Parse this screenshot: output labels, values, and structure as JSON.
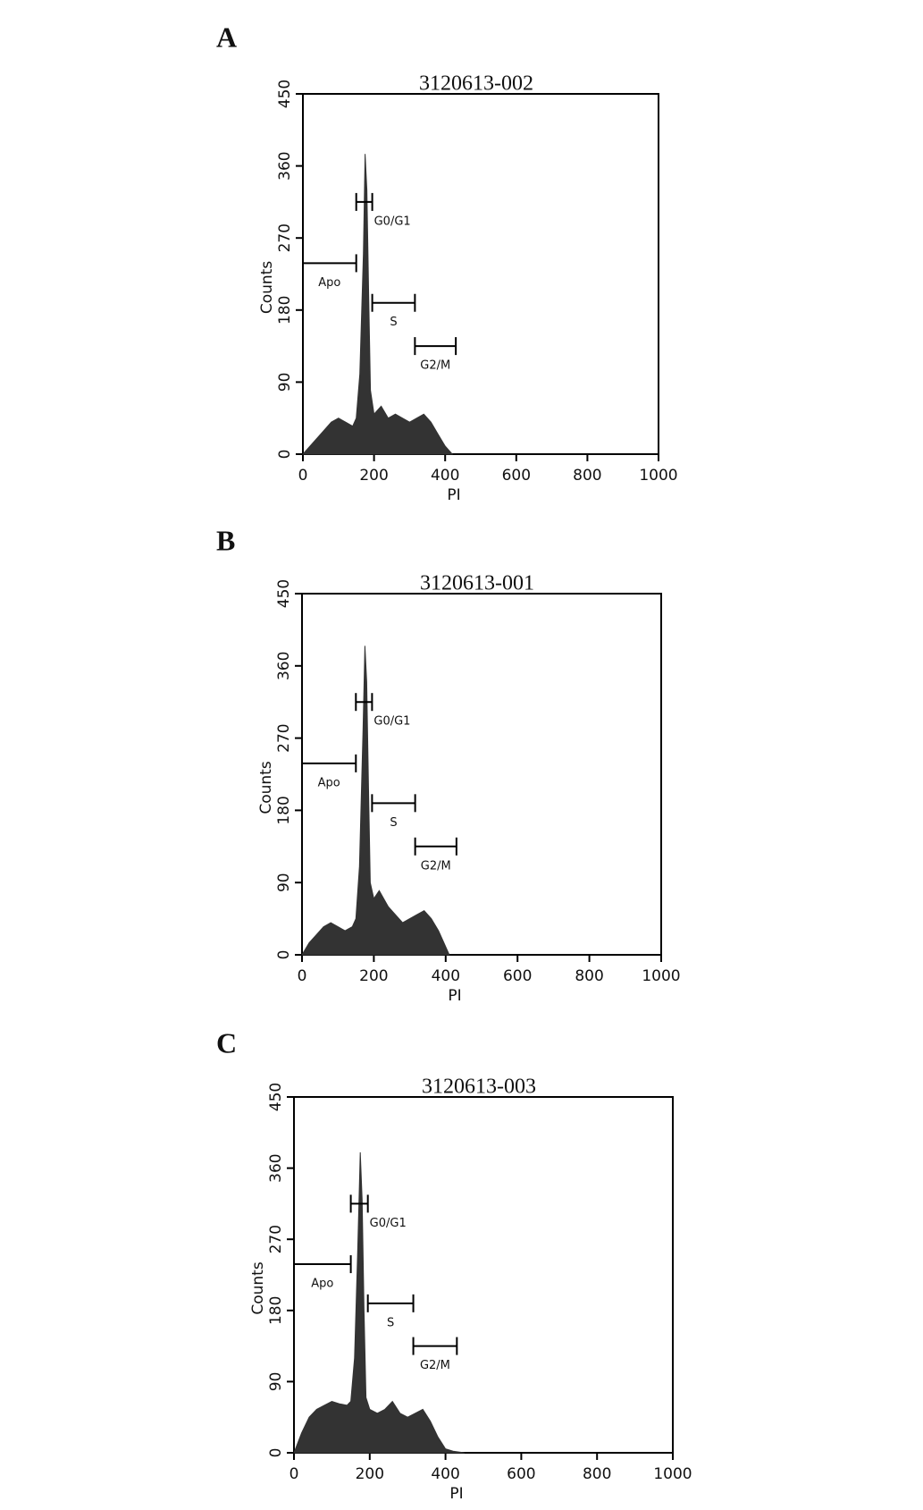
{
  "chart_data": [
    {
      "type": "area",
      "panel": "A",
      "title": "3120613-002",
      "xlabel": "PI",
      "ylabel": "Counts",
      "color": "#333333",
      "x": [
        0,
        20,
        40,
        60,
        80,
        100,
        120,
        140,
        150,
        160,
        170,
        175,
        180,
        185,
        190,
        200,
        220,
        240,
        260,
        280,
        300,
        320,
        340,
        360,
        380,
        400,
        420
      ],
      "values": [
        0,
        10,
        20,
        30,
        40,
        45,
        40,
        35,
        45,
        100,
        250,
        375,
        330,
        200,
        80,
        50,
        60,
        45,
        50,
        45,
        40,
        45,
        50,
        40,
        25,
        10,
        0
      ],
      "xlim": [
        0,
        1000
      ],
      "ylim": [
        0,
        450
      ],
      "xticks": [
        0,
        200,
        400,
        600,
        800,
        1000
      ],
      "yticks": [
        0,
        90,
        180,
        270,
        360,
        450
      ],
      "gates": [
        {
          "label": "Apo",
          "range": [
            0,
            150
          ]
        },
        {
          "label": "G0/G1",
          "range": [
            150,
            195
          ]
        },
        {
          "label": "S",
          "range": [
            195,
            315
          ]
        },
        {
          "label": "G2/M",
          "range": [
            315,
            430
          ]
        }
      ]
    },
    {
      "type": "area",
      "panel": "B",
      "title": "3120613-001",
      "xlabel": "PI",
      "ylabel": "Counts",
      "color": "#333333",
      "x": [
        0,
        20,
        40,
        60,
        80,
        100,
        120,
        140,
        150,
        160,
        170,
        175,
        180,
        185,
        190,
        200,
        215,
        240,
        260,
        280,
        300,
        320,
        340,
        360,
        380,
        400,
        410
      ],
      "values": [
        0,
        15,
        25,
        35,
        40,
        35,
        30,
        35,
        45,
        110,
        280,
        385,
        340,
        210,
        90,
        70,
        80,
        60,
        50,
        40,
        45,
        50,
        55,
        45,
        30,
        10,
        0
      ],
      "xlim": [
        0,
        1000
      ],
      "ylim": [
        0,
        450
      ],
      "xticks": [
        0,
        200,
        400,
        600,
        800,
        1000
      ],
      "yticks": [
        0,
        90,
        180,
        270,
        360,
        450
      ],
      "gates": [
        {
          "label": "Apo",
          "range": [
            0,
            150
          ]
        },
        {
          "label": "G0/G1",
          "range": [
            150,
            195
          ]
        },
        {
          "label": "S",
          "range": [
            195,
            315
          ]
        },
        {
          "label": "G2/M",
          "range": [
            315,
            430
          ]
        }
      ]
    },
    {
      "type": "area",
      "panel": "C",
      "title": "3120613-003",
      "xlabel": "PI",
      "ylabel": "Counts",
      "color": "#333333",
      "x": [
        0,
        20,
        40,
        60,
        80,
        100,
        120,
        140,
        150,
        160,
        168,
        175,
        180,
        185,
        190,
        200,
        220,
        240,
        260,
        280,
        300,
        320,
        340,
        360,
        380,
        400,
        420,
        450
      ],
      "values": [
        0,
        25,
        45,
        55,
        60,
        65,
        62,
        60,
        65,
        120,
        250,
        380,
        320,
        180,
        70,
        55,
        50,
        55,
        65,
        50,
        45,
        50,
        55,
        40,
        20,
        5,
        2,
        0
      ],
      "xlim": [
        0,
        1000
      ],
      "ylim": [
        0,
        450
      ],
      "xticks": [
        0,
        200,
        400,
        600,
        800,
        1000
      ],
      "yticks": [
        0,
        90,
        180,
        270,
        360,
        450
      ],
      "gates": [
        {
          "label": "Apo",
          "range": [
            0,
            150
          ]
        },
        {
          "label": "G0/G1",
          "range": [
            150,
            195
          ]
        },
        {
          "label": "S",
          "range": [
            195,
            315
          ]
        },
        {
          "label": "G2/M",
          "range": [
            315,
            430
          ]
        }
      ]
    }
  ]
}
